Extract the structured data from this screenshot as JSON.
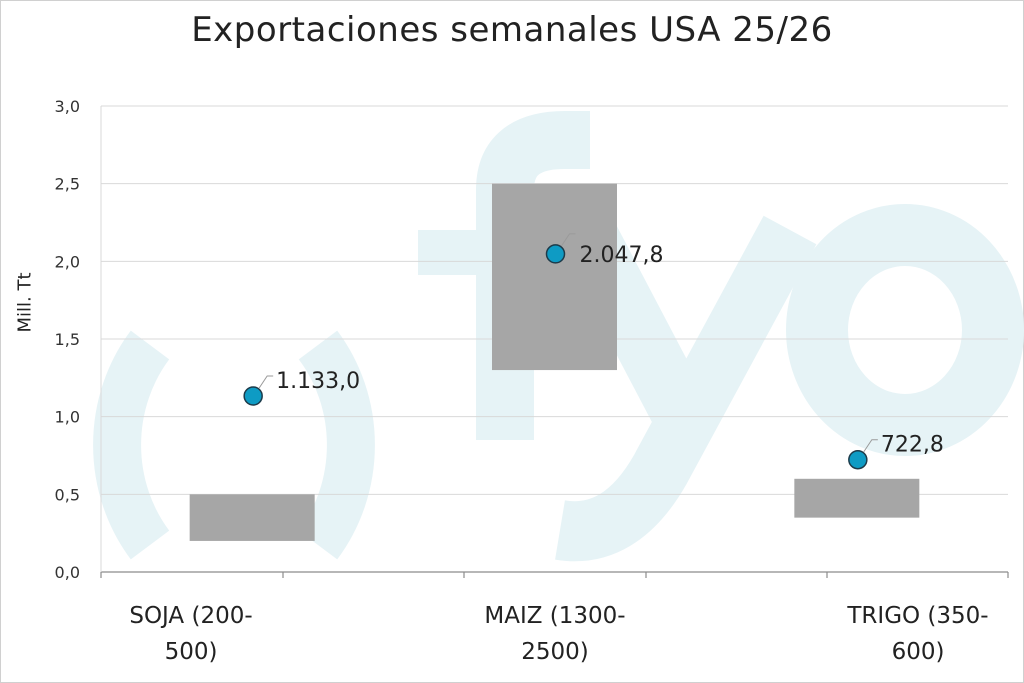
{
  "chart_data": {
    "type": "range-bar-with-points",
    "title": "Exportaciones semanales USA  25/26",
    "ylabel": "Mill. Tt",
    "ylim": [
      0,
      3.0
    ],
    "yticks": [
      "0,0",
      "0,5",
      "1,0",
      "1,5",
      "2,0",
      "2,5",
      "3,0"
    ],
    "grid": true,
    "categories": [
      {
        "line1": "SOJA (200-",
        "line2": "500)"
      },
      {
        "line1": "MAIZ (1300-",
        "line2": "2500)"
      },
      {
        "line1": "TRIGO (350-",
        "line2": "600)"
      }
    ],
    "ranges": [
      {
        "low": 0.2,
        "high": 0.5
      },
      {
        "low": 1.3,
        "high": 2.5
      },
      {
        "low": 0.35,
        "high": 0.6
      }
    ],
    "actual": [
      1.133,
      2.0478,
      0.7228
    ],
    "actual_labels": [
      "1.133,0",
      "2.047,8",
      "722,8"
    ],
    "watermark": "fyo",
    "colors": {
      "range": "#a6a6a6",
      "point": "#0e9bc4",
      "point_edge": "#1d3b4a",
      "grid": "#d9d9d9",
      "watermark": "#e6f3f6"
    }
  }
}
